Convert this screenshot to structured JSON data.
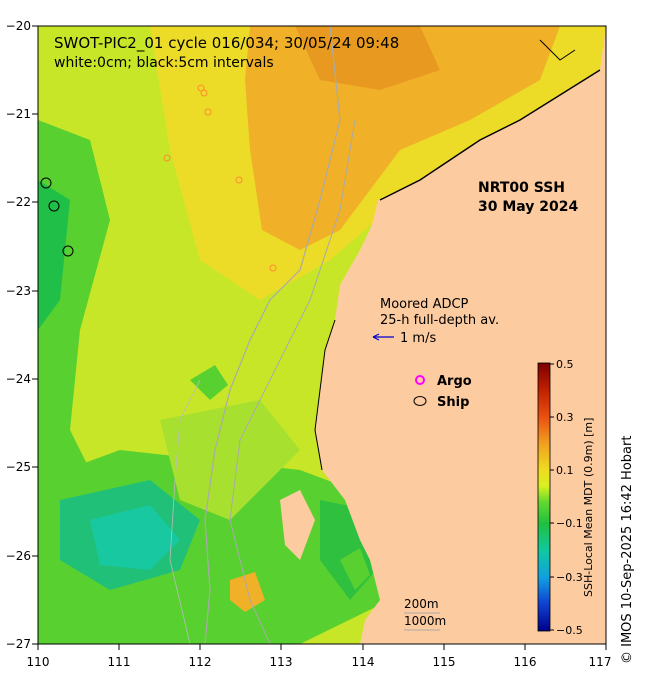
{
  "header": {
    "line1": "SWOT-PIC2_01 cycle 016/034; 30/05/24 09:48",
    "line2": "white:0cm; black:5cm intervals"
  },
  "product": {
    "name": "NRT00 SSH",
    "date": "30 May 2024"
  },
  "adcp": {
    "title": "Moored ADCP",
    "subtitle": "25-h full-depth av.",
    "scale_label": "1 m/s",
    "arrow_color": "#0000cc"
  },
  "legend": {
    "argo_label": "Argo",
    "argo_color": "#ff00ff",
    "ship_label": "Ship"
  },
  "isobaths": {
    "shallow": "200m",
    "deep": "1000m"
  },
  "colorbar": {
    "label": "SSH-Local Mean MDT (0.9m) [m]",
    "ticks": [
      "0.5",
      "0.3",
      "0.1",
      "−0.1",
      "−0.3",
      "−0.5"
    ]
  },
  "axes": {
    "x_ticks": [
      "110",
      "111",
      "112",
      "113",
      "114",
      "115",
      "116",
      "117"
    ],
    "y_ticks": [
      "−20",
      "−21",
      "−22",
      "−23",
      "−24",
      "−25",
      "−26",
      "−27"
    ]
  },
  "credit": "© IMOS 10-Sep-2025 16:42 Hobart",
  "colors": {
    "land": "#fdcba0",
    "field_base": "#c8e628",
    "high": "#f0a020",
    "low": "#18c850"
  }
}
